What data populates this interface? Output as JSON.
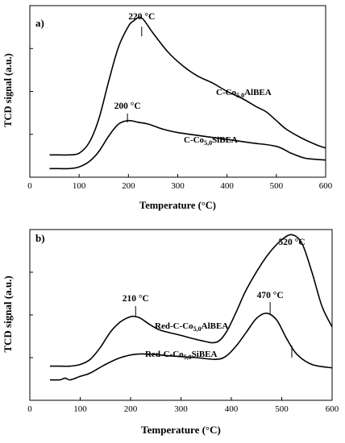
{
  "chart_data": [
    {
      "type": "line",
      "panel_label": "a)",
      "xlabel": "Temperature (°C)",
      "ylabel": "TCD signal (a.u.)",
      "xlim": [
        0,
        600
      ],
      "ylim": [
        0,
        100
      ],
      "xticks": [
        0,
        100,
        200,
        300,
        400,
        500,
        600
      ],
      "series": [
        {
          "name": "C-Co5,0AlBEA",
          "label_parts": [
            "C-Co",
            "5,0",
            "AlBEA"
          ],
          "x": [
            40,
            60,
            80,
            100,
            120,
            140,
            160,
            180,
            200,
            210,
            220,
            230,
            250,
            280,
            310,
            340,
            370,
            400,
            430,
            460,
            480,
            500,
            520,
            550,
            580,
            600
          ],
          "y": [
            13,
            13,
            13,
            14,
            20,
            34,
            56,
            76,
            88,
            91,
            93,
            92,
            84,
            73,
            65,
            59,
            55,
            50,
            46,
            41,
            38,
            33,
            28,
            23,
            19,
            17
          ]
        },
        {
          "name": "C-Co5,0SiBEA",
          "label_parts": [
            "C-Co",
            "5,0",
            "SiBEA"
          ],
          "x": [
            40,
            60,
            80,
            100,
            120,
            140,
            160,
            180,
            200,
            220,
            240,
            270,
            300,
            350,
            400,
            450,
            500,
            530,
            560,
            600
          ],
          "y": [
            5,
            5,
            5,
            6,
            9,
            15,
            24,
            31,
            33,
            32,
            31,
            28,
            26,
            24,
            22,
            20,
            18,
            14,
            11,
            10
          ]
        }
      ],
      "annotations": [
        {
          "text": "220 °C",
          "x": 222,
          "y": 95
        },
        {
          "text": "200 °C",
          "x": 198,
          "y": 37
        }
      ]
    },
    {
      "type": "line",
      "panel_label": "b)",
      "xlabel": "Temperature (°C)",
      "ylabel": "TCD signal (a.u.)",
      "xlim": [
        0,
        600
      ],
      "ylim": [
        0,
        100
      ],
      "xticks": [
        0,
        100,
        200,
        300,
        400,
        500,
        600
      ],
      "series": [
        {
          "name": "Red-C-Co5,0AlBEA",
          "label_parts": [
            "Red-C-Co",
            "5,0",
            "AlBEA"
          ],
          "x": [
            40,
            60,
            80,
            100,
            120,
            140,
            160,
            180,
            200,
            210,
            220,
            240,
            260,
            300,
            340,
            370,
            390,
            410,
            430,
            460,
            480,
            500,
            520,
            540,
            560,
            580,
            600
          ],
          "y": [
            20,
            20,
            20,
            21,
            24,
            31,
            40,
            46,
            49,
            49,
            48,
            44,
            41,
            38,
            35,
            34,
            40,
            52,
            65,
            80,
            88,
            94,
            97,
            92,
            75,
            55,
            43
          ]
        },
        {
          "name": "Red-C-Co5,0SiBEA",
          "label_parts": [
            "Red-C-Co",
            "5,0",
            "SiBEA"
          ],
          "x": [
            40,
            60,
            70,
            80,
            100,
            120,
            150,
            180,
            210,
            240,
            280,
            330,
            370,
            390,
            410,
            430,
            450,
            470,
            490,
            510,
            530,
            560,
            600
          ],
          "y": [
            12,
            12,
            13,
            12,
            14,
            16,
            21,
            25,
            27,
            27,
            26,
            25,
            24,
            26,
            32,
            40,
            48,
            51,
            47,
            36,
            27,
            21,
            19
          ]
        }
      ],
      "annotations": [
        {
          "text": "210 °C",
          "x": 210,
          "y": 53
        },
        {
          "text": "520 °C",
          "x": 520,
          "y": 102
        },
        {
          "text": "470 °C",
          "x": 477,
          "y": 56
        }
      ]
    }
  ]
}
